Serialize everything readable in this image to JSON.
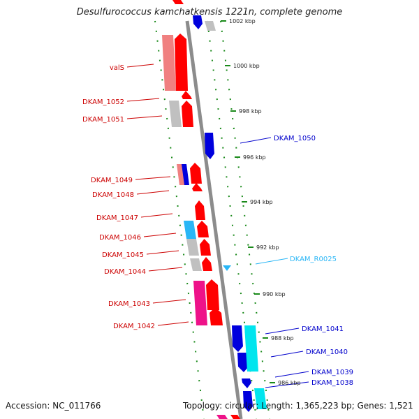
{
  "title": "Desulfurococcus kamchatkensis 1221n, complete genome",
  "footer": {
    "accession": "Accession: NC_011766",
    "topology": "Topology: circular; Length: 1,365,223 bp; Genes: 1,521"
  },
  "colors": {
    "red": "#ff0000",
    "pink_red": "#f08080",
    "gray": "#c0c0c0",
    "blue": "#0000dd",
    "cyan": "#00e5ee",
    "light_blue": "#29b6f6",
    "magenta": "#ee1289",
    "tick_green": "#1a8a1a",
    "backbone": "#808080"
  },
  "kbp_ticks": [
    "1002 kbp",
    "1000 kbp",
    "998 kbp",
    "996 kbp",
    "994 kbp",
    "992 kbp",
    "990 kbp",
    "988 kbp",
    "986 kbp"
  ],
  "left_labels": [
    {
      "text": "valS",
      "color": "#cc0000"
    },
    {
      "text": "DKAM_1052",
      "color": "#cc0000"
    },
    {
      "text": "DKAM_1051",
      "color": "#cc0000"
    },
    {
      "text": "DKAM_1049",
      "color": "#cc0000"
    },
    {
      "text": "DKAM_1048",
      "color": "#cc0000"
    },
    {
      "text": "DKAM_1047",
      "color": "#cc0000"
    },
    {
      "text": "DKAM_1046",
      "color": "#cc0000"
    },
    {
      "text": "DKAM_1045",
      "color": "#cc0000"
    },
    {
      "text": "DKAM_1044",
      "color": "#cc0000"
    },
    {
      "text": "DKAM_1043",
      "color": "#cc0000"
    },
    {
      "text": "DKAM_1042",
      "color": "#cc0000"
    }
  ],
  "right_labels": [
    {
      "text": "DKAM_1050",
      "color": "#0000cc"
    },
    {
      "text": "DKAM_R0025",
      "color": "#29b6f6"
    },
    {
      "text": "DKAM_1041",
      "color": "#0000cc"
    },
    {
      "text": "DKAM_1040",
      "color": "#0000cc"
    },
    {
      "text": "DKAM_1039",
      "color": "#0000cc"
    },
    {
      "text": "DKAM_1038",
      "color": "#0000cc"
    }
  ]
}
